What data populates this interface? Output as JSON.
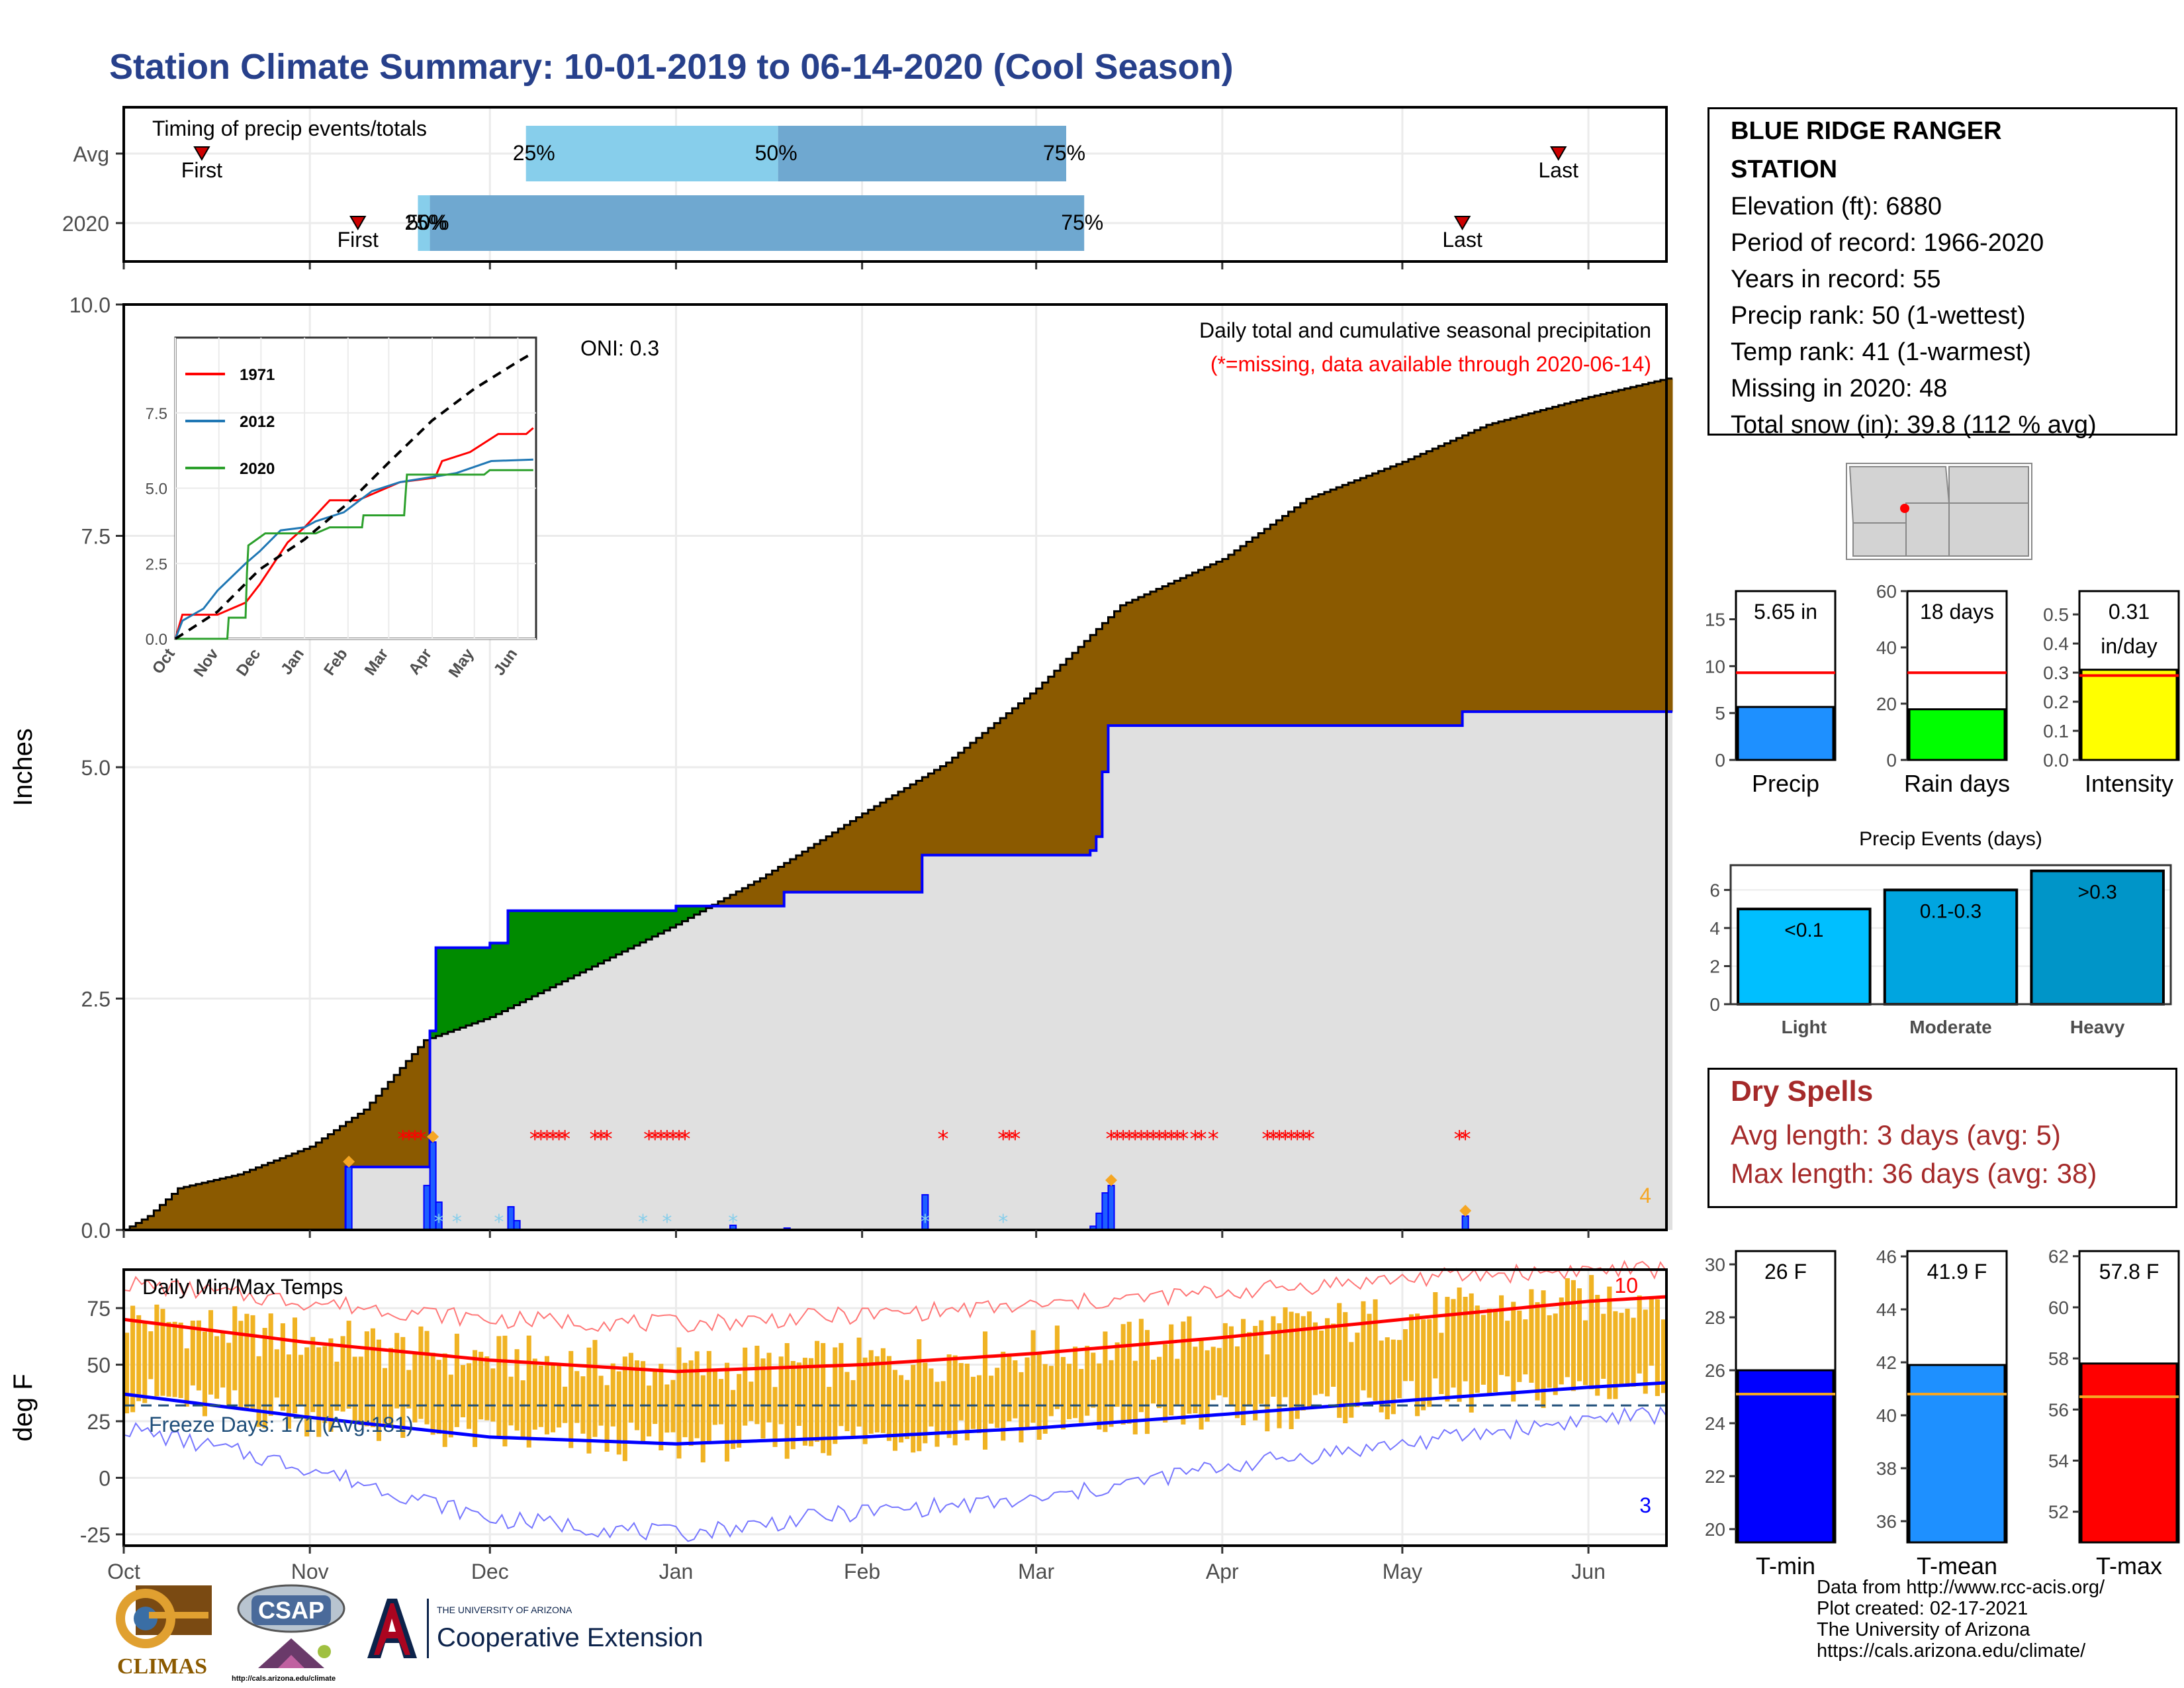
{
  "header": {
    "title": "Station Climate Summary: 10-01-2019 to 06-14-2020 (Cool Season)"
  },
  "colors": {
    "title": "#27408b",
    "brown": "#8b5a00",
    "green": "#008b00",
    "gray_fill": "#e0e0e0",
    "blue": "#0000ff",
    "orange": "#f5a623",
    "red": "#ff0000",
    "light_blue": "#87ceeb",
    "mid_blue": "#6fa8d0",
    "dry_spell": "#a52a2a"
  },
  "station_info": {
    "name_line1": "BLUE RIDGE RANGER",
    "name_line2": "STATION",
    "lines": [
      "Elevation (ft): 6880",
      "Period of record: 1966-2020",
      "Years in record: 55",
      "Precip rank: 50 (1-wettest)",
      "Temp rank: 41 (1-warmest)",
      "Missing in 2020: 48",
      "Total snow (in): 39.8 (112 % avg)"
    ]
  },
  "dry_spells": {
    "title": "Dry Spells",
    "avg": "Avg length: 3 days (avg: 5)",
    "max": "Max length: 36 days (avg: 38)"
  },
  "footer": {
    "lines": [
      "Data from http://www.rcc-acis.org/",
      "Plot created: 02-17-2021",
      "The University of Arizona",
      "https://cals.arizona.edu/climate/"
    ]
  },
  "logos": {
    "climas": "CLIMAS",
    "csap": "CSAP",
    "csap_url": "http://cals.arizona.edu/climate",
    "ua_small": "THE UNIVERSITY OF ARIZONA",
    "ua_big": "Cooperative Extension"
  },
  "chart_data": [
    {
      "id": "timing",
      "type": "bar",
      "title": "Timing of precip events/totals",
      "rows": [
        {
          "label": "Avg",
          "first": "2019-10-14",
          "last": "2020-05-27",
          "p25": "2019-12-07",
          "p50": "2020-01-18",
          "p75": "2020-03-06",
          "labels": {
            "first": "First",
            "last": "Last",
            "p25": "25%",
            "p50": "50%",
            "p75": "75%"
          }
        },
        {
          "label": "2020",
          "first": "2019-11-09",
          "last": "2020-05-11",
          "p25": "2019-11-19",
          "p50": "2019-11-21",
          "p75": "2020-03-09",
          "labels": {
            "first": "First",
            "last": "Last",
            "p25": "25%",
            "p50": "50%",
            "p75": "75%"
          }
        }
      ]
    },
    {
      "id": "precip",
      "type": "area",
      "ylabel": "Inches",
      "ylim": [
        0,
        10
      ],
      "yticks": [
        "0.0",
        "2.5",
        "5.0",
        "7.5",
        "10.0"
      ],
      "annotation_oni": "ONI: 0.3",
      "annotation_title": "Daily total and cumulative seasonal precipitation",
      "annotation_missing": "(*=missing, data available through 2020-06-14)",
      "corner_label": "4",
      "avg_cumulative": [
        [
          "2019-10-01",
          0.0
        ],
        [
          "2019-10-05",
          0.15
        ],
        [
          "2019-10-10",
          0.45
        ],
        [
          "2019-10-20",
          0.6
        ],
        [
          "2019-11-01",
          0.9
        ],
        [
          "2019-11-10",
          1.3
        ],
        [
          "2019-11-20",
          2.05
        ],
        [
          "2019-12-01",
          2.3
        ],
        [
          "2019-12-15",
          2.75
        ],
        [
          "2020-01-01",
          3.3
        ],
        [
          "2020-01-15",
          3.8
        ],
        [
          "2020-02-01",
          4.5
        ],
        [
          "2020-02-15",
          5.05
        ],
        [
          "2020-03-01",
          5.85
        ],
        [
          "2020-03-15",
          6.75
        ],
        [
          "2020-04-01",
          7.25
        ],
        [
          "2020-04-15",
          7.9
        ],
        [
          "2020-05-01",
          8.3
        ],
        [
          "2020-05-15",
          8.7
        ],
        [
          "2020-06-01",
          9.0
        ],
        [
          "2020-06-14",
          9.2
        ]
      ],
      "obs_cumulative": [
        [
          "2019-10-01",
          0.0
        ],
        [
          "2019-11-06",
          0.0
        ],
        [
          "2019-11-07",
          0.68
        ],
        [
          "2019-11-20",
          0.68
        ],
        [
          "2019-11-21",
          2.15
        ],
        [
          "2019-11-22",
          3.05
        ],
        [
          "2019-12-01",
          3.1
        ],
        [
          "2019-12-04",
          3.45
        ],
        [
          "2020-01-01",
          3.5
        ],
        [
          "2020-01-10",
          3.5
        ],
        [
          "2020-01-19",
          3.65
        ],
        [
          "2020-02-10",
          3.65
        ],
        [
          "2020-02-11",
          4.05
        ],
        [
          "2020-03-01",
          4.05
        ],
        [
          "2020-03-10",
          4.1
        ],
        [
          "2020-03-11",
          4.25
        ],
        [
          "2020-03-12",
          4.95
        ],
        [
          "2020-03-13",
          5.45
        ],
        [
          "2020-05-10",
          5.45
        ],
        [
          "2020-05-11",
          5.6
        ],
        [
          "2020-06-14",
          5.6
        ]
      ],
      "daily_precip": [
        [
          "2019-11-07",
          0.68
        ],
        [
          "2019-11-20",
          0.48
        ],
        [
          "2019-11-21",
          0.95
        ],
        [
          "2019-11-22",
          0.3
        ],
        [
          "2019-12-04",
          0.25
        ],
        [
          "2019-12-05",
          0.1
        ],
        [
          "2020-01-10",
          0.05
        ],
        [
          "2020-01-19",
          0.02
        ],
        [
          "2020-02-11",
          0.38
        ],
        [
          "2020-03-10",
          0.04
        ],
        [
          "2020-03-11",
          0.18
        ],
        [
          "2020-03-12",
          0.4
        ],
        [
          "2020-03-13",
          0.48
        ],
        [
          "2020-05-11",
          0.15
        ]
      ],
      "missing_dates": [
        "2019-11-16",
        "2019-11-17",
        "2019-11-18",
        "2019-11-19",
        "2019-12-08",
        "2019-12-09",
        "2019-12-10",
        "2019-12-11",
        "2019-12-12",
        "2019-12-13",
        "2019-12-18",
        "2019-12-19",
        "2019-12-20",
        "2019-12-27",
        "2019-12-28",
        "2019-12-29",
        "2019-12-30",
        "2019-12-31",
        "2020-01-01",
        "2020-01-02",
        "2020-02-14",
        "2020-02-24",
        "2020-02-25",
        "2020-02-26",
        "2020-03-13",
        "2020-03-14",
        "2020-03-15",
        "2020-03-16",
        "2020-03-17",
        "2020-03-18",
        "2020-03-19",
        "2020-03-20",
        "2020-03-21",
        "2020-03-22",
        "2020-03-23",
        "2020-03-24",
        "2020-03-25",
        "2020-03-27",
        "2020-03-28",
        "2020-03-30",
        "2020-04-08",
        "2020-04-09",
        "2020-04-10",
        "2020-04-11",
        "2020-04-12",
        "2020-04-13",
        "2020-04-14",
        "2020-04-15",
        "2020-05-10",
        "2020-05-11"
      ],
      "snow_dates": [
        "2019-11-22",
        "2019-11-25",
        "2019-12-02",
        "2019-12-26",
        "2019-12-30",
        "2020-01-10",
        "2020-02-11",
        "2020-02-24"
      ],
      "large_event_dates": [
        "2019-11-07",
        "2019-11-21",
        "2020-03-13",
        "2020-05-11"
      ],
      "inset": {
        "type": "line",
        "xticks": [
          "Oct",
          "Nov",
          "Dec",
          "Jan",
          "Feb",
          "Mar",
          "Apr",
          "May",
          "Jun"
        ],
        "yticks": [
          "0.0",
          "2.5",
          "5.0",
          "7.5"
        ],
        "ylim": [
          0,
          10
        ],
        "series": [
          {
            "name": "1971",
            "color": "#ff0000",
            "values": [
              [
                0,
                0
              ],
              [
                5,
                0.8
              ],
              [
                30,
                0.8
              ],
              [
                50,
                1.2
              ],
              [
                60,
                1.8
              ],
              [
                70,
                2.5
              ],
              [
                80,
                3.2
              ],
              [
                92,
                3.7
              ],
              [
                110,
                4.6
              ],
              [
                130,
                4.6
              ],
              [
                160,
                5.2
              ],
              [
                185,
                5.35
              ],
              [
                190,
                5.9
              ],
              [
                210,
                6.2
              ],
              [
                230,
                6.8
              ],
              [
                250,
                6.8
              ],
              [
                255,
                7.0
              ]
            ]
          },
          {
            "name": "2012",
            "color": "#1f77b4",
            "values": [
              [
                0,
                0
              ],
              [
                5,
                0.6
              ],
              [
                20,
                1.0
              ],
              [
                30,
                1.6
              ],
              [
                50,
                2.5
              ],
              [
                60,
                2.9
              ],
              [
                75,
                3.6
              ],
              [
                92,
                3.7
              ],
              [
                100,
                3.9
              ],
              [
                120,
                4.2
              ],
              [
                140,
                4.9
              ],
              [
                160,
                5.2
              ],
              [
                200,
                5.5
              ],
              [
                225,
                5.9
              ],
              [
                255,
                5.95
              ]
            ]
          },
          {
            "name": "2020",
            "color": "#2ca02c",
            "values": [
              [
                0,
                0
              ],
              [
                37,
                0
              ],
              [
                38,
                0.7
              ],
              [
                50,
                0.7
              ],
              [
                51,
                2.2
              ],
              [
                52,
                3.1
              ],
              [
                64,
                3.5
              ],
              [
                100,
                3.5
              ],
              [
                110,
                3.7
              ],
              [
                133,
                3.7
              ],
              [
                134,
                4.1
              ],
              [
                163,
                4.1
              ],
              [
                165,
                5.45
              ],
              [
                220,
                5.45
              ],
              [
                224,
                5.6
              ],
              [
                255,
                5.6
              ]
            ]
          },
          {
            "name": "avg",
            "color": "#000000",
            "dashed": true,
            "values": [
              [
                0,
                0
              ],
              [
                30,
                0.9
              ],
              [
                60,
                2.3
              ],
              [
                92,
                3.3
              ],
              [
                123,
                4.5
              ],
              [
                152,
                5.85
              ],
              [
                183,
                7.25
              ],
              [
                213,
                8.3
              ],
              [
                244,
                9.2
              ],
              [
                255,
                9.5
              ]
            ]
          }
        ]
      }
    },
    {
      "id": "temps",
      "type": "bar",
      "title": "Daily Min/Max Temps",
      "ylabel": "deg F",
      "ylim": [
        -30,
        92
      ],
      "yticks": [
        "-25",
        "0",
        "25",
        "50",
        "75"
      ],
      "xticks": [
        "Oct",
        "Nov",
        "Dec",
        "Jan",
        "Feb",
        "Mar",
        "Apr",
        "May",
        "Jun"
      ],
      "freeze_text": "Freeze Days: 171 (Avg:181)",
      "freeze_line": 32,
      "label_10": "10",
      "label_3": "3",
      "avg_max": [
        [
          0,
          70
        ],
        [
          30,
          60
        ],
        [
          61,
          52
        ],
        [
          92,
          47
        ],
        [
          123,
          50
        ],
        [
          152,
          55
        ],
        [
          183,
          62
        ],
        [
          213,
          70
        ],
        [
          244,
          78
        ],
        [
          257,
          80
        ]
      ],
      "avg_min": [
        [
          0,
          37
        ],
        [
          30,
          27
        ],
        [
          61,
          18
        ],
        [
          92,
          15
        ],
        [
          123,
          18
        ],
        [
          152,
          22
        ],
        [
          183,
          28
        ],
        [
          213,
          34
        ],
        [
          244,
          40
        ],
        [
          257,
          42
        ]
      ],
      "rec_max": [
        [
          0,
          86
        ],
        [
          30,
          78
        ],
        [
          61,
          70
        ],
        [
          92,
          68
        ],
        [
          123,
          72
        ],
        [
          152,
          76
        ],
        [
          183,
          82
        ],
        [
          213,
          88
        ],
        [
          244,
          92
        ],
        [
          257,
          92
        ]
      ],
      "rec_min": [
        [
          0,
          22
        ],
        [
          30,
          5
        ],
        [
          61,
          -18
        ],
        [
          92,
          -25
        ],
        [
          123,
          -15
        ],
        [
          152,
          -10
        ],
        [
          183,
          5
        ],
        [
          213,
          15
        ],
        [
          244,
          26
        ],
        [
          257,
          28
        ]
      ]
    },
    {
      "id": "precip_bars",
      "type": "bar",
      "panels": [
        {
          "label": "Precip",
          "value": 5.65,
          "avg": 9.3,
          "text": "5.65 in",
          "ymax": 18,
          "yticks": [
            "0",
            "5",
            "10",
            "15"
          ],
          "color": "#1e90ff"
        },
        {
          "label": "Rain days",
          "value": 18,
          "avg": 31,
          "text": "18 days",
          "ymax": 60,
          "yticks": [
            "0",
            "20",
            "40",
            "60"
          ],
          "color": "#00ff00"
        },
        {
          "label": "Intensity",
          "value": 0.31,
          "avg": 0.29,
          "text_line1": "0.31",
          "text_line2": "in/day",
          "ymax": 0.58,
          "yticks": [
            "0.0",
            "0.1",
            "0.2",
            "0.3",
            "0.4",
            "0.5"
          ],
          "color": "#ffff00"
        }
      ]
    },
    {
      "id": "events",
      "type": "bar",
      "title": "Precip Events (days)",
      "categories": [
        "Light",
        "Moderate",
        "Heavy"
      ],
      "values": [
        5,
        6,
        7
      ],
      "bar_labels": [
        "<0.1",
        "0.1-0.3",
        ">0.3"
      ],
      "yticks": [
        "0",
        "2",
        "4",
        "6"
      ],
      "ylim": [
        0,
        7.3
      ],
      "colors": [
        "#00bfff",
        "#00a5e0",
        "#0095c8"
      ]
    },
    {
      "id": "temp_bars",
      "type": "bar",
      "panels": [
        {
          "label": "T-min",
          "value": 26,
          "avg": 25.1,
          "text": "26 F",
          "ylim": [
            19.5,
            30.5
          ],
          "yticks": [
            "20",
            "22",
            "24",
            "26",
            "28",
            "30"
          ],
          "color": "#0000ff"
        },
        {
          "label": "T-mean",
          "value": 41.9,
          "avg": 40.8,
          "text": "41.9 F",
          "ylim": [
            35.2,
            46.2
          ],
          "yticks": [
            "36",
            "38",
            "40",
            "42",
            "44",
            "46"
          ],
          "color": "#1e90ff"
        },
        {
          "label": "T-max",
          "value": 57.8,
          "avg": 56.5,
          "text": "57.8 F",
          "ylim": [
            50.8,
            62.2
          ],
          "yticks": [
            "52",
            "54",
            "56",
            "58",
            "60",
            "62"
          ],
          "color": "#ff0000"
        }
      ]
    }
  ]
}
